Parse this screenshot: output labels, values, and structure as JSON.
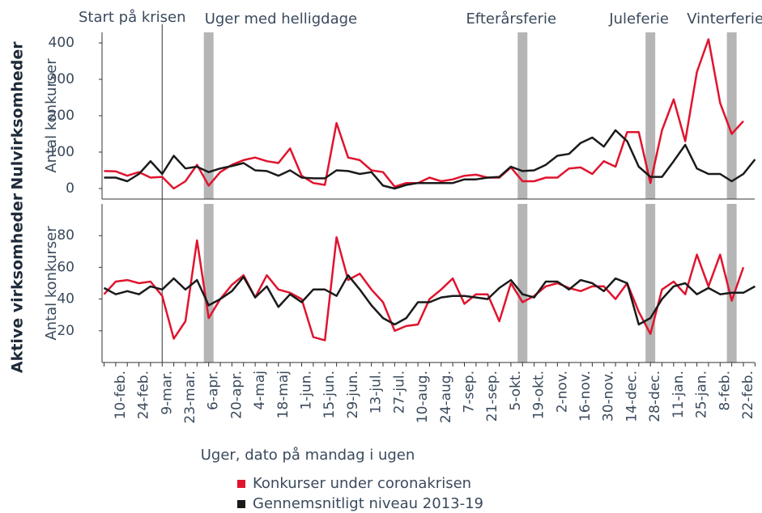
{
  "chart_data": {
    "type": "line",
    "x_label": "Uger, dato på mandag i ugen",
    "categories": [
      null,
      "10-feb.",
      null,
      "24-feb.",
      null,
      "9-mar.",
      null,
      "23-mar.",
      null,
      "6-apr.",
      null,
      "20-apr.",
      null,
      "4-maj",
      null,
      "18-maj",
      null,
      "1-jun.",
      null,
      "15-jun.",
      null,
      "29-jun.",
      null,
      "13-jul.",
      null,
      "27-jul.",
      null,
      "10-aug.",
      null,
      "24-aug.",
      null,
      "7-sep.",
      null,
      "21-sep.",
      null,
      "5-okt.",
      null,
      "19-okt.",
      null,
      "2-nov.",
      null,
      "16-nov.",
      null,
      "30-nov.",
      null,
      "14-dec.",
      null,
      "28-dec.",
      null,
      "11-jan.",
      null,
      "25-jan.",
      null,
      "8-feb.",
      null,
      "22-feb.",
      null
    ],
    "annotations": [
      {
        "label": "Start på krisen",
        "kind": "line",
        "index": 5
      },
      {
        "label": "Uger med helligdage",
        "kind": "band",
        "index": 9
      },
      {
        "label": "Efterårsferie",
        "kind": "band",
        "index": 36
      },
      {
        "label": "Juleferie",
        "kind": "band",
        "index": 47
      },
      {
        "label": "Vinterferie",
        "kind": "band",
        "index": 54
      }
    ],
    "series": [
      {
        "name": "Konkurser under coronakrisen",
        "color": "#e0142e"
      },
      {
        "name": "Gennemsnitligt niveau 2013-19",
        "color": "#1a1a1a"
      }
    ],
    "panels": [
      {
        "title": "Nulvirksomheder",
        "y_label": "Antal konkurser",
        "ylim": [
          -29,
          429
        ],
        "yticks": [
          0,
          100,
          200,
          300,
          400
        ],
        "values": [
          [
            48,
            47,
            35,
            45,
            30,
            32,
            0,
            20,
            65,
            8,
            45,
            65,
            78,
            85,
            75,
            70,
            110,
            35,
            15,
            10,
            180,
            85,
            78,
            50,
            45,
            5,
            15,
            15,
            30,
            20,
            25,
            35,
            38,
            30,
            30,
            58,
            20,
            20,
            30,
            30,
            55,
            58,
            40,
            75,
            60,
            155,
            155,
            15,
            160,
            245,
            130,
            320,
            410,
            235,
            150,
            185,
            null
          ],
          [
            30,
            30,
            20,
            40,
            75,
            40,
            90,
            55,
            60,
            45,
            55,
            62,
            70,
            50,
            48,
            35,
            50,
            30,
            28,
            28,
            50,
            48,
            40,
            45,
            8,
            0,
            10,
            15,
            15,
            15,
            15,
            25,
            25,
            30,
            32,
            60,
            48,
            50,
            65,
            90,
            95,
            125,
            140,
            115,
            160,
            130,
            60,
            32,
            32,
            75,
            120,
            55,
            40,
            40,
            20,
            40,
            80
          ]
        ]
      },
      {
        "title": "Aktive virksomheder",
        "y_label": "Antal konkurser",
        "ylim": [
          0,
          100
        ],
        "yticks": [
          20,
          40,
          60,
          80
        ],
        "values": [
          [
            43,
            51,
            52,
            50,
            51,
            42,
            15,
            26,
            77,
            28,
            40,
            49,
            55,
            41,
            55,
            46,
            44,
            40,
            16,
            14,
            79,
            52,
            56,
            46,
            38,
            20,
            23,
            24,
            40,
            46,
            53,
            37,
            43,
            43,
            26,
            50,
            38,
            42,
            48,
            50,
            47,
            45,
            48,
            48,
            40,
            50,
            32,
            18,
            46,
            51,
            43,
            68,
            48,
            68,
            39,
            60,
            null
          ],
          [
            47,
            43,
            45,
            43,
            48,
            46,
            53,
            46,
            52,
            36,
            40,
            45,
            54,
            41,
            48,
            35,
            43,
            38,
            46,
            46,
            42,
            55,
            46,
            36,
            28,
            24,
            28,
            38,
            38,
            41,
            42,
            42,
            41,
            40,
            47,
            52,
            43,
            41,
            51,
            51,
            46,
            52,
            50,
            45,
            53,
            50,
            24,
            28,
            40,
            48,
            50,
            43,
            47,
            43,
            44,
            44,
            48
          ]
        ]
      }
    ]
  }
}
